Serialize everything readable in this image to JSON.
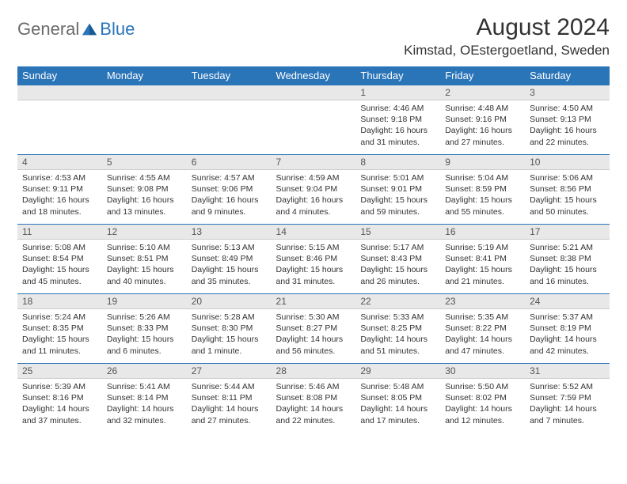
{
  "logo": {
    "text_general": "General",
    "text_blue": "Blue"
  },
  "title": "August 2024",
  "location": "Kimstad, OEstergoetland, Sweden",
  "day_headers": [
    "Sunday",
    "Monday",
    "Tuesday",
    "Wednesday",
    "Thursday",
    "Friday",
    "Saturday"
  ],
  "colors": {
    "header_bg": "#2a74b8",
    "header_fg": "#ffffff",
    "day_num_bg": "#e8e8e8",
    "cell_border": "#2a74b8",
    "text": "#333333",
    "logo_general": "#6a6a6a",
    "logo_blue": "#2a74b8"
  },
  "weeks": [
    [
      null,
      null,
      null,
      null,
      {
        "n": "1",
        "sr": "4:46 AM",
        "ss": "9:18 PM",
        "dl": "16 hours and 31 minutes."
      },
      {
        "n": "2",
        "sr": "4:48 AM",
        "ss": "9:16 PM",
        "dl": "16 hours and 27 minutes."
      },
      {
        "n": "3",
        "sr": "4:50 AM",
        "ss": "9:13 PM",
        "dl": "16 hours and 22 minutes."
      }
    ],
    [
      {
        "n": "4",
        "sr": "4:53 AM",
        "ss": "9:11 PM",
        "dl": "16 hours and 18 minutes."
      },
      {
        "n": "5",
        "sr": "4:55 AM",
        "ss": "9:08 PM",
        "dl": "16 hours and 13 minutes."
      },
      {
        "n": "6",
        "sr": "4:57 AM",
        "ss": "9:06 PM",
        "dl": "16 hours and 9 minutes."
      },
      {
        "n": "7",
        "sr": "4:59 AM",
        "ss": "9:04 PM",
        "dl": "16 hours and 4 minutes."
      },
      {
        "n": "8",
        "sr": "5:01 AM",
        "ss": "9:01 PM",
        "dl": "15 hours and 59 minutes."
      },
      {
        "n": "9",
        "sr": "5:04 AM",
        "ss": "8:59 PM",
        "dl": "15 hours and 55 minutes."
      },
      {
        "n": "10",
        "sr": "5:06 AM",
        "ss": "8:56 PM",
        "dl": "15 hours and 50 minutes."
      }
    ],
    [
      {
        "n": "11",
        "sr": "5:08 AM",
        "ss": "8:54 PM",
        "dl": "15 hours and 45 minutes."
      },
      {
        "n": "12",
        "sr": "5:10 AM",
        "ss": "8:51 PM",
        "dl": "15 hours and 40 minutes."
      },
      {
        "n": "13",
        "sr": "5:13 AM",
        "ss": "8:49 PM",
        "dl": "15 hours and 35 minutes."
      },
      {
        "n": "14",
        "sr": "5:15 AM",
        "ss": "8:46 PM",
        "dl": "15 hours and 31 minutes."
      },
      {
        "n": "15",
        "sr": "5:17 AM",
        "ss": "8:43 PM",
        "dl": "15 hours and 26 minutes."
      },
      {
        "n": "16",
        "sr": "5:19 AM",
        "ss": "8:41 PM",
        "dl": "15 hours and 21 minutes."
      },
      {
        "n": "17",
        "sr": "5:21 AM",
        "ss": "8:38 PM",
        "dl": "15 hours and 16 minutes."
      }
    ],
    [
      {
        "n": "18",
        "sr": "5:24 AM",
        "ss": "8:35 PM",
        "dl": "15 hours and 11 minutes."
      },
      {
        "n": "19",
        "sr": "5:26 AM",
        "ss": "8:33 PM",
        "dl": "15 hours and 6 minutes."
      },
      {
        "n": "20",
        "sr": "5:28 AM",
        "ss": "8:30 PM",
        "dl": "15 hours and 1 minute."
      },
      {
        "n": "21",
        "sr": "5:30 AM",
        "ss": "8:27 PM",
        "dl": "14 hours and 56 minutes."
      },
      {
        "n": "22",
        "sr": "5:33 AM",
        "ss": "8:25 PM",
        "dl": "14 hours and 51 minutes."
      },
      {
        "n": "23",
        "sr": "5:35 AM",
        "ss": "8:22 PM",
        "dl": "14 hours and 47 minutes."
      },
      {
        "n": "24",
        "sr": "5:37 AM",
        "ss": "8:19 PM",
        "dl": "14 hours and 42 minutes."
      }
    ],
    [
      {
        "n": "25",
        "sr": "5:39 AM",
        "ss": "8:16 PM",
        "dl": "14 hours and 37 minutes."
      },
      {
        "n": "26",
        "sr": "5:41 AM",
        "ss": "8:14 PM",
        "dl": "14 hours and 32 minutes."
      },
      {
        "n": "27",
        "sr": "5:44 AM",
        "ss": "8:11 PM",
        "dl": "14 hours and 27 minutes."
      },
      {
        "n": "28",
        "sr": "5:46 AM",
        "ss": "8:08 PM",
        "dl": "14 hours and 22 minutes."
      },
      {
        "n": "29",
        "sr": "5:48 AM",
        "ss": "8:05 PM",
        "dl": "14 hours and 17 minutes."
      },
      {
        "n": "30",
        "sr": "5:50 AM",
        "ss": "8:02 PM",
        "dl": "14 hours and 12 minutes."
      },
      {
        "n": "31",
        "sr": "5:52 AM",
        "ss": "7:59 PM",
        "dl": "14 hours and 7 minutes."
      }
    ]
  ],
  "labels": {
    "sunrise": "Sunrise:",
    "sunset": "Sunset:",
    "daylight": "Daylight:"
  }
}
